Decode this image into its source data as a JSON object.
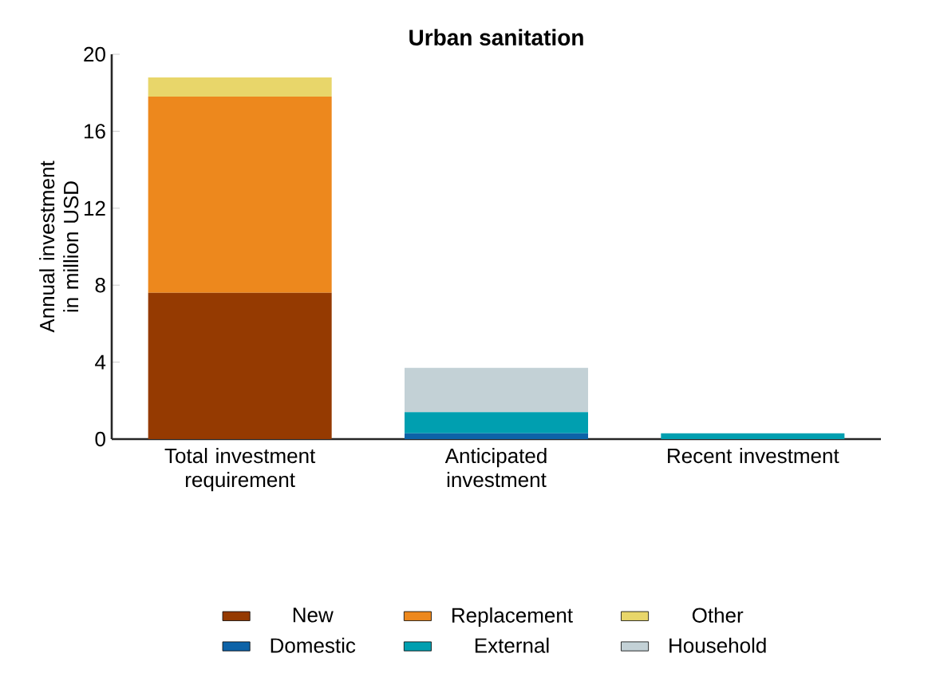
{
  "chart_data": {
    "type": "bar",
    "title": "Urban sanitation",
    "ylabel": "Annual investment in million USD",
    "categories": [
      "Total investment requirement",
      "Anticipated investment",
      "Recent investment"
    ],
    "stacked": true,
    "ylim": [
      0,
      20
    ],
    "yticks": [
      0,
      4,
      8,
      12,
      16,
      20
    ],
    "grid": false,
    "legend": "bottom",
    "series": [
      {
        "name": "New",
        "color": "#953a01",
        "values": [
          7.6,
          null,
          null
        ]
      },
      {
        "name": "Replacement",
        "color": "#ed881d",
        "values": [
          10.2,
          null,
          null
        ]
      },
      {
        "name": "Other",
        "color": "#e8d66a",
        "values": [
          1.0,
          null,
          null
        ]
      },
      {
        "name": "Domestic",
        "color": "#0d63a8",
        "values": [
          null,
          0.3,
          null
        ]
      },
      {
        "name": "External",
        "color": "#009fb0",
        "values": [
          null,
          1.1,
          0.3
        ]
      },
      {
        "name": "Household",
        "color": "#c3d1d6",
        "values": [
          null,
          2.3,
          null
        ]
      }
    ]
  }
}
